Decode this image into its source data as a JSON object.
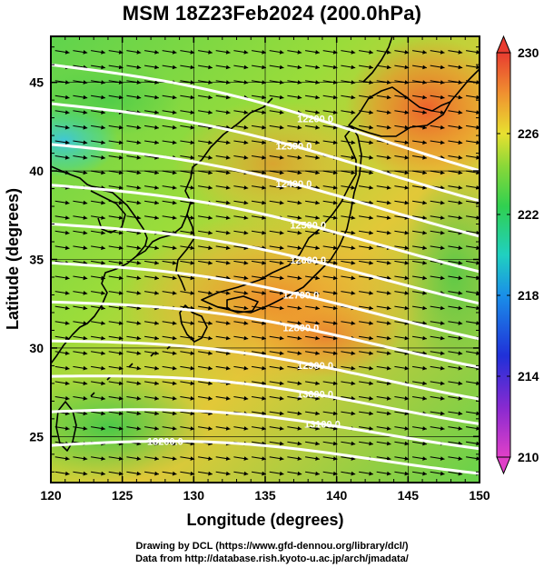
{
  "title": "MSM 18Z23Feb2024 (200.0hPa)",
  "chart_data": {
    "type": "heatmap",
    "xlabel": "Longitude (degrees)",
    "ylabel": "Latitude  (degrees)",
    "xlim": [
      120,
      150
    ],
    "ylim": [
      22.4,
      47.6
    ],
    "xticks": [
      120,
      125,
      130,
      135,
      140,
      145,
      150
    ],
    "yticks": [
      25,
      30,
      35,
      40,
      45
    ],
    "colorbar": {
      "min": 210,
      "max": 230,
      "ticks": [
        210,
        214,
        218,
        222,
        226,
        230
      ]
    },
    "contours": [
      {
        "value": "12200.0",
        "lat_at_120": 46.0,
        "lat_at_150": 40.5,
        "label": "12200.0",
        "label_lon": 138.5
      },
      {
        "value": "12300.0",
        "lat_at_120": 43.8,
        "lat_at_150": 38.8,
        "label": "12300.0",
        "label_lon": 137.0
      },
      {
        "value": "12400.0",
        "lat_at_120": 41.5,
        "lat_at_150": 36.8,
        "label": "12400.0",
        "label_lon": 137.0
      },
      {
        "value": "12500.0",
        "lat_at_120": 39.2,
        "lat_at_150": 34.8,
        "label": "12500.0",
        "label_lon": 138.0
      },
      {
        "value": "12600.0",
        "lat_at_120": 37.0,
        "lat_at_150": 33.0,
        "label": "12600.0",
        "label_lon": 138.0
      },
      {
        "value": "12700.0",
        "lat_at_120": 34.8,
        "lat_at_150": 31.0,
        "label": "12700.0",
        "label_lon": 137.5
      },
      {
        "value": "12800.0",
        "lat_at_120": 32.6,
        "lat_at_150": 29.4,
        "label": "12800.0",
        "label_lon": 137.5
      },
      {
        "value": "12900.0",
        "lat_at_120": 30.4,
        "lat_at_150": 27.6,
        "label": "12900.0",
        "label_lon": 138.5
      },
      {
        "value": "13000.0",
        "lat_at_120": 28.4,
        "lat_at_150": 26.2,
        "label": "13000.0",
        "label_lon": 138.5
      },
      {
        "value": "13100.0",
        "lat_at_120": 26.4,
        "lat_at_150": 24.8,
        "label": "13100.0",
        "label_lon": 139.0
      },
      {
        "value": "13200.0",
        "lat_at_120": 24.5,
        "lat_at_150": 23.4,
        "label": "13200.0",
        "label_lon": 128.0
      }
    ]
  },
  "credits": {
    "line1": "Drawing by DCL (https://www.gfd-dennou.org/library/dcl/)",
    "line2": "Data from http://database.rish.kyoto-u.ac.jp/arch/jmadata/"
  }
}
